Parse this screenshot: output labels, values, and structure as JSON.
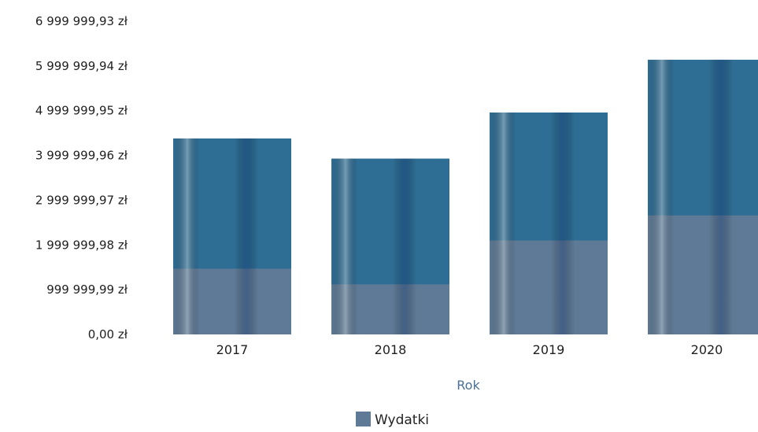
{
  "chart_data": {
    "type": "bar",
    "title": "",
    "xlabel": "Rok",
    "ylabel": "",
    "categories": [
      "2017",
      "2018",
      "2019",
      "2020"
    ],
    "series": [
      {
        "name": "Wydatki",
        "values": [
          4380000,
          3930000,
          4960000,
          6140000
        ]
      }
    ],
    "yticks": [
      0,
      999999.99,
      1999999.98,
      2999999.97,
      3999999.96,
      4999999.95,
      5999999.94,
      6999999.93
    ],
    "ytick_labels": [
      "0,00 zł",
      "999 999,99 zł",
      "1 999 999,98 zł",
      "2 999 999,97 zł",
      "3 999 999,96 zł",
      "4 999 999,95 zł",
      "5 999 999,94 zł",
      "6 999 999,93 zł"
    ],
    "ylim": [
      0,
      6999999.93
    ],
    "grid": false,
    "legend_position": "bottom",
    "colors": {
      "bar_top": "#2e6d94",
      "bar_bottom": "#5f7a96",
      "stripe_light": "#8fa8b8",
      "stripe_dark": "#1e4f86",
      "stripe_pink": "#8a6f93",
      "axis_title": "#4a6f93"
    }
  }
}
